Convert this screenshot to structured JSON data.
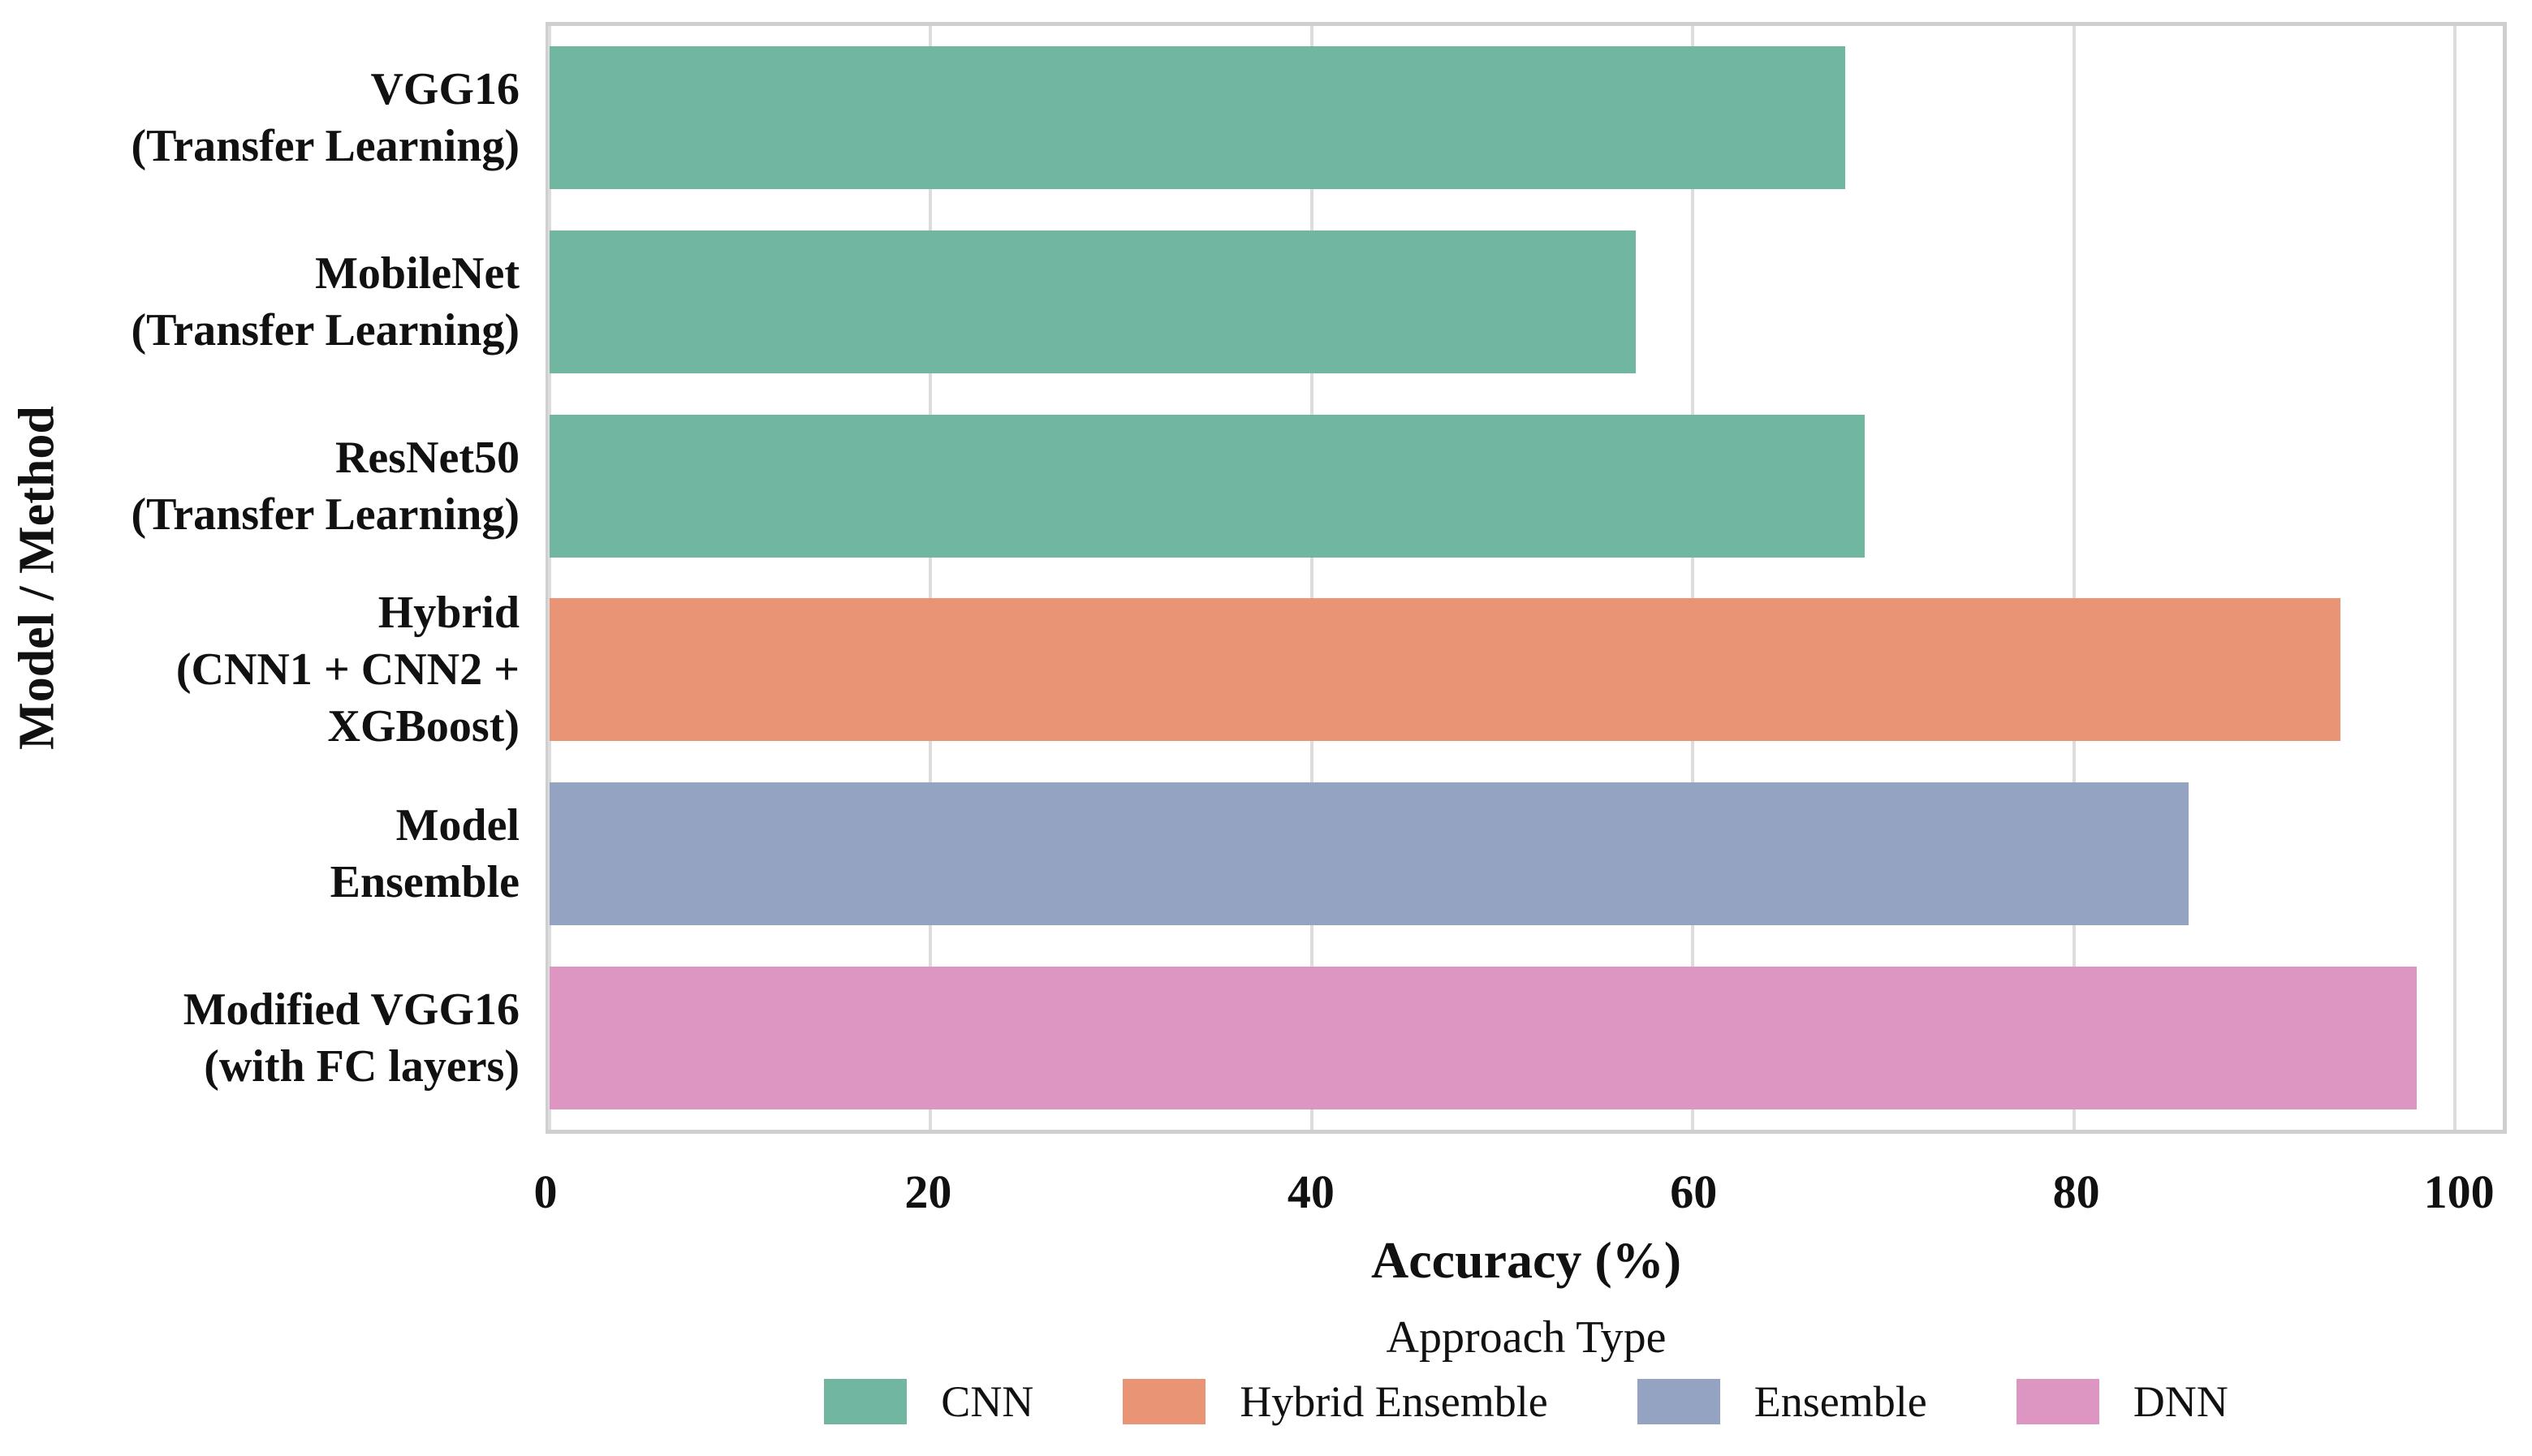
{
  "chart_data": {
    "type": "bar",
    "orientation": "horizontal",
    "title": "",
    "xlabel": "Accuracy (%)",
    "ylabel": "Model / Method",
    "xlim": [
      0,
      102.5
    ],
    "xticks": [
      0,
      20,
      40,
      60,
      80,
      100
    ],
    "grid": "vertical-gridlines-on",
    "bars": [
      {
        "label_lines": [
          "VGG16",
          "(Transfer Learning)"
        ],
        "value": 68,
        "approach": "CNN"
      },
      {
        "label_lines": [
          "MobileNet",
          "(Transfer Learning)"
        ],
        "value": 57,
        "approach": "CNN"
      },
      {
        "label_lines": [
          "ResNet50",
          "(Transfer Learning)"
        ],
        "value": 69,
        "approach": "CNN"
      },
      {
        "label_lines": [
          "Hybrid",
          "(CNN1 + CNN2 +",
          "XGBoost)"
        ],
        "value": 94,
        "approach": "Hybrid Ensemble"
      },
      {
        "label_lines": [
          "Model",
          "Ensemble"
        ],
        "value": 86,
        "approach": "Ensemble"
      },
      {
        "label_lines": [
          "Modified VGG16",
          "(with FC layers)"
        ],
        "value": 98,
        "approach": "DNN"
      }
    ],
    "legend": {
      "title": "Approach Type",
      "position": "bottom-center",
      "entries": [
        {
          "label": "CNN",
          "color": "#71b6a0"
        },
        {
          "label": "Hybrid Ensemble",
          "color": "#e99575"
        },
        {
          "label": "Ensemble",
          "color": "#95a3c3"
        },
        {
          "label": "DNN",
          "color": "#dc96c1"
        }
      ]
    },
    "colors": {
      "approach_colors": {
        "CNN": "#71b6a0",
        "Hybrid Ensemble": "#e99575",
        "Ensemble": "#95a3c3",
        "DNN": "#dc96c1"
      },
      "gridline": "#dcdcdc",
      "spine": "#cfcfcf",
      "text": "#111111",
      "background": "#ffffff"
    }
  }
}
